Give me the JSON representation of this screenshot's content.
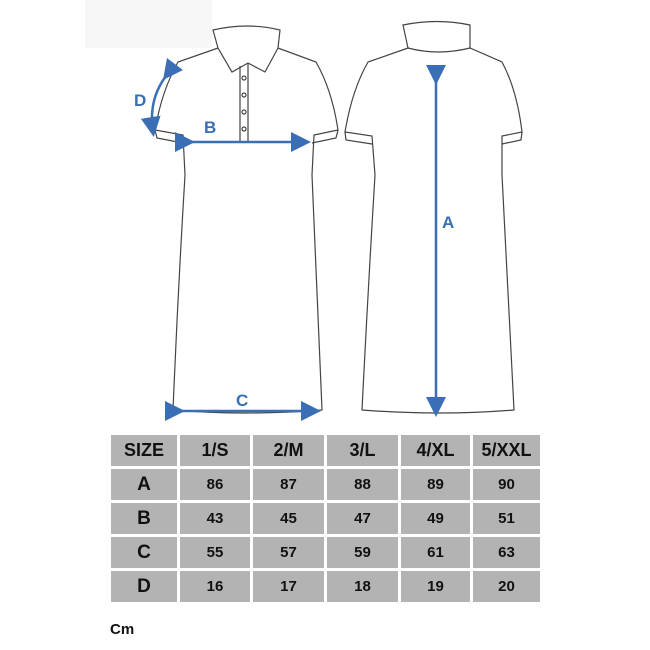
{
  "diagram": {
    "labels": {
      "A": "A",
      "B": "B",
      "C": "C",
      "D": "D"
    },
    "arrow_color": "#3a6fb5"
  },
  "size_table": {
    "header": [
      "SIZE",
      "1/S",
      "2/M",
      "3/L",
      "4/XL",
      "5/XXL"
    ],
    "rows": [
      {
        "label": "A",
        "values": [
          "86",
          "87",
          "88",
          "89",
          "90"
        ]
      },
      {
        "label": "B",
        "values": [
          "43",
          "45",
          "47",
          "49",
          "51"
        ]
      },
      {
        "label": "C",
        "values": [
          "55",
          "57",
          "59",
          "61",
          "63"
        ]
      },
      {
        "label": "D",
        "values": [
          "16",
          "17",
          "18",
          "19",
          "20"
        ]
      }
    ],
    "cell_color": "#b3b3b3"
  },
  "unit": "Cm"
}
